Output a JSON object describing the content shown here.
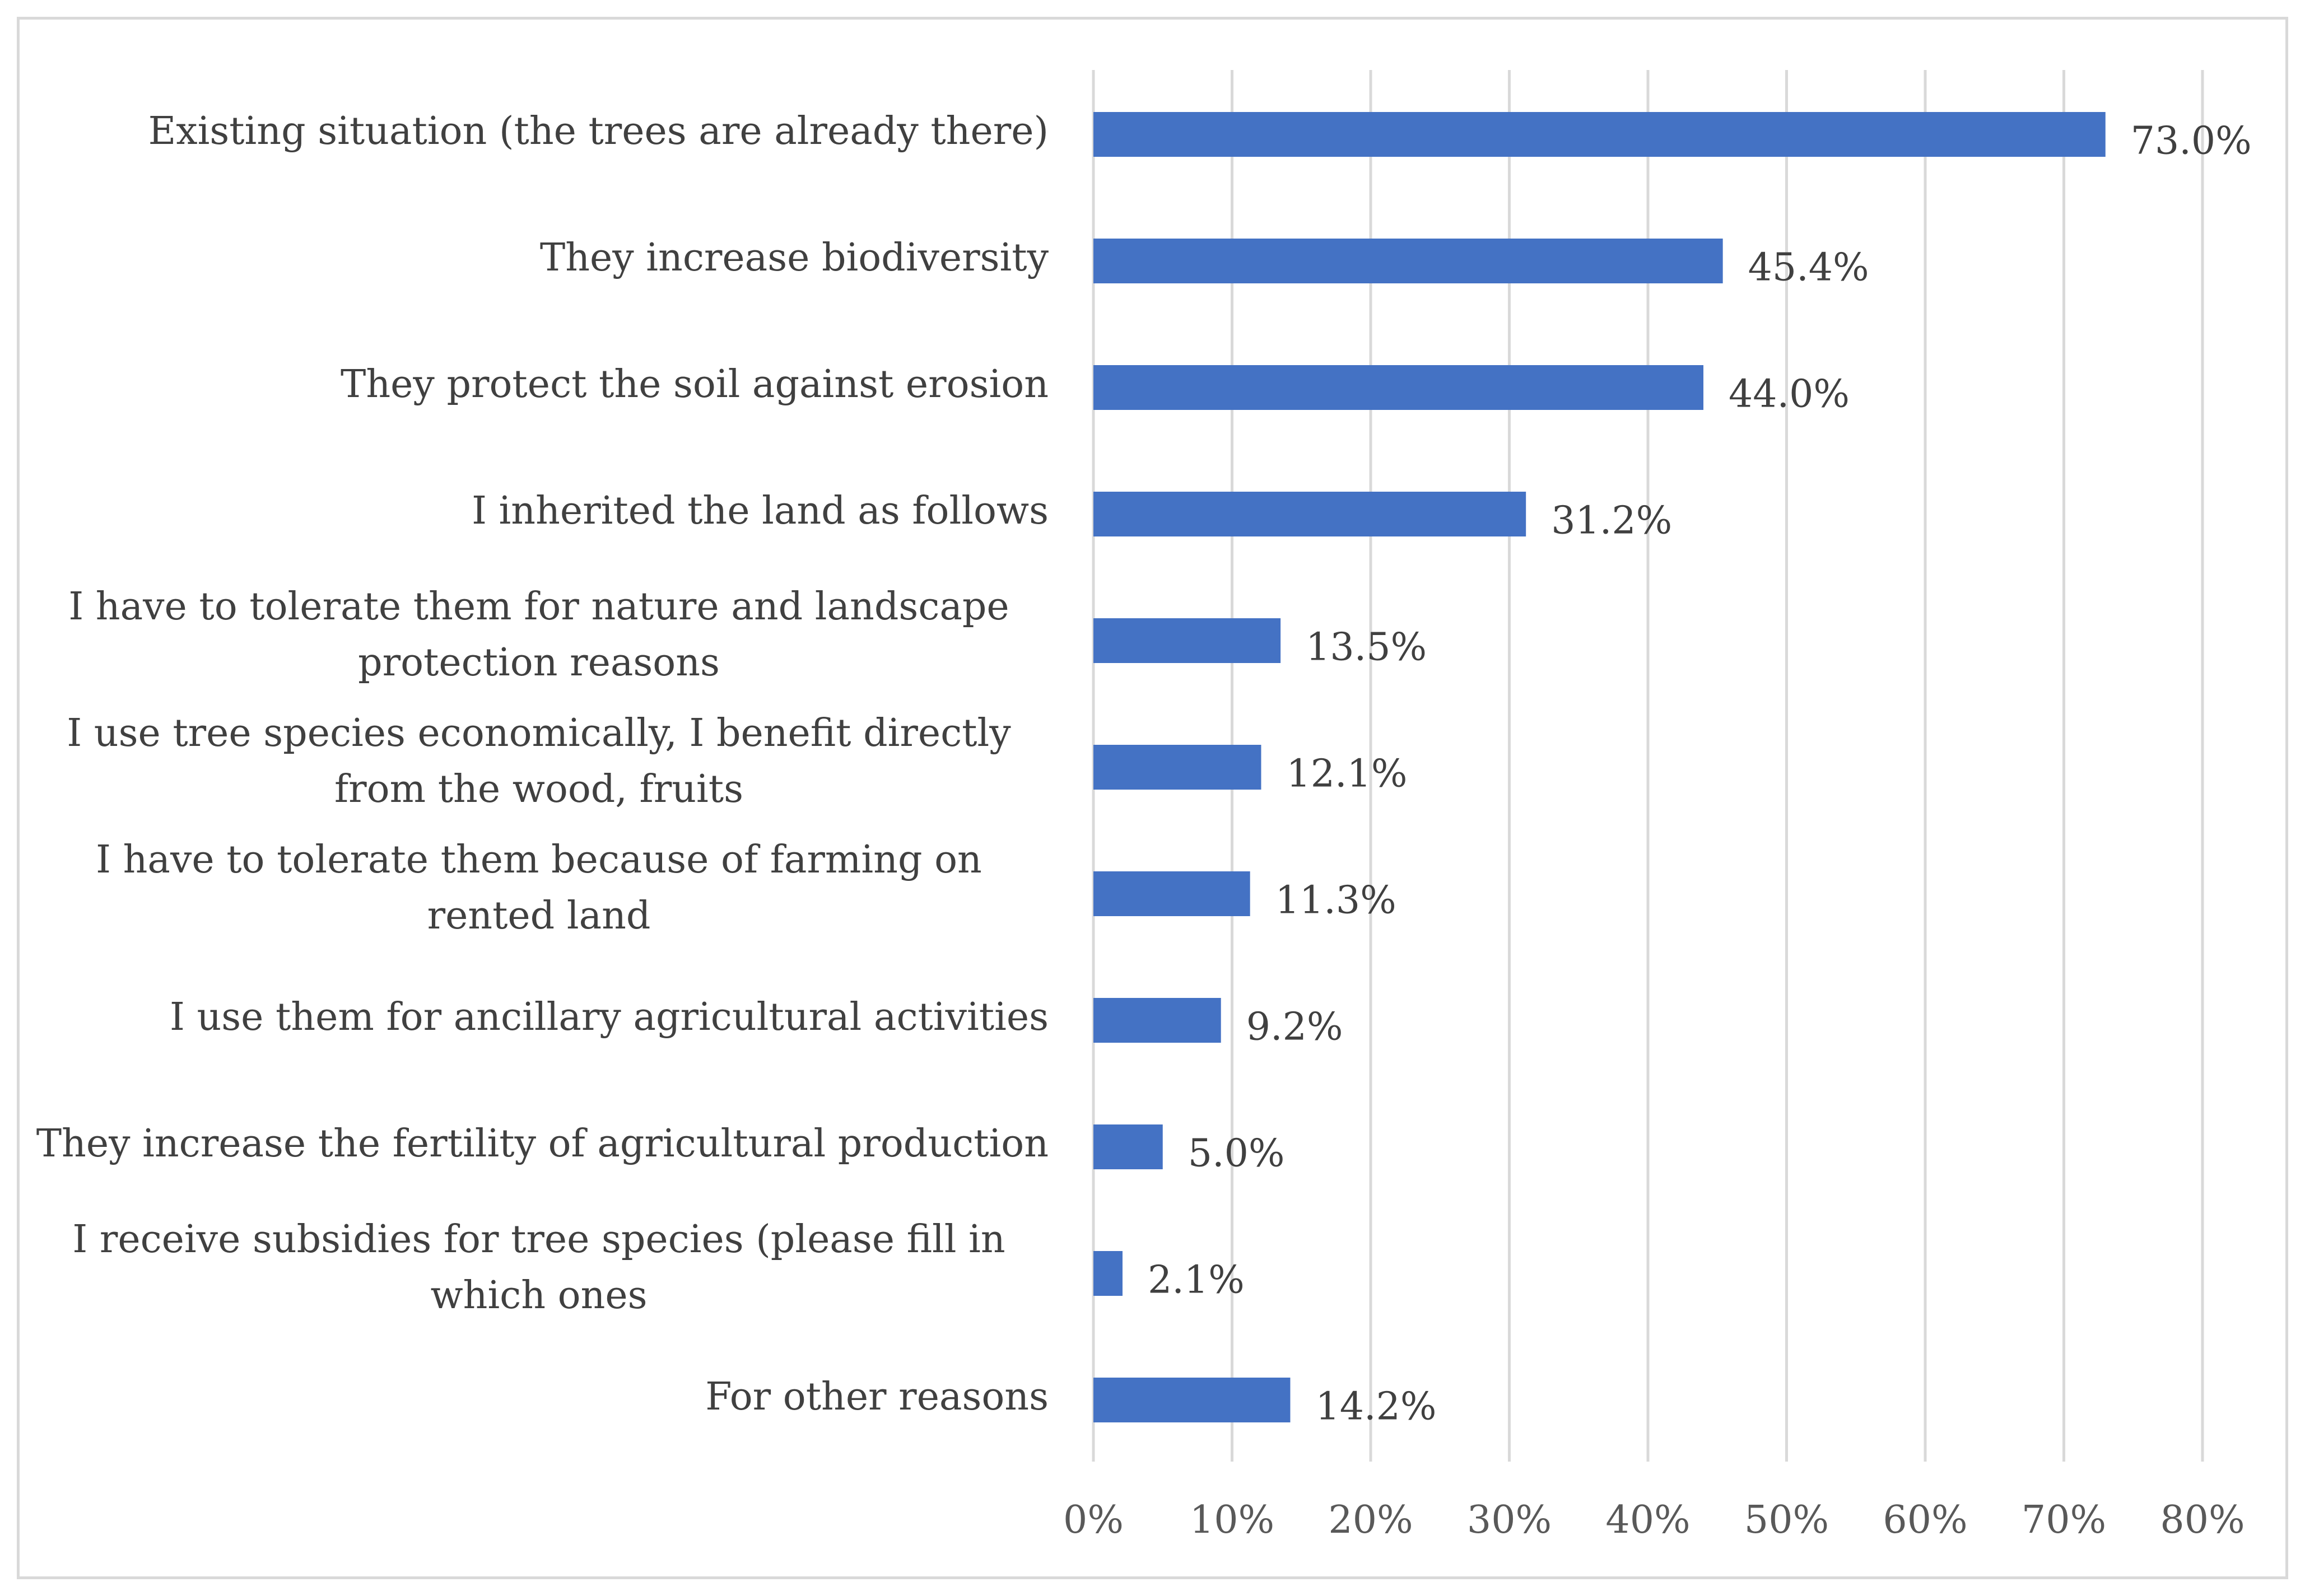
{
  "chart_data": {
    "type": "bar",
    "orientation": "horizontal",
    "categories": [
      "Existing situation (the trees are already there)",
      "They increase biodiversity",
      "They protect the soil against erosion",
      "I inherited the land as follows",
      "I have to tolerate them for nature and landscape protection reasons",
      "I use tree species economically, I benefit directly from the wood, fruits",
      "I have to tolerate them because of farming on rented land",
      "I use them for ancillary agricultural activities",
      "They increase the fertility of agricultural production",
      "I receive subsidies for tree species (please fill in which ones",
      "For other reasons"
    ],
    "values": [
      73.0,
      45.4,
      44.0,
      31.2,
      13.5,
      12.1,
      11.3,
      9.2,
      5.0,
      2.1,
      14.2
    ],
    "value_labels": [
      "73.0%",
      "45.4%",
      "44.0%",
      "31.2%",
      "13.5%",
      "12.1%",
      "11.3%",
      "9.2%",
      "5.0%",
      "2.1%",
      "14.2%"
    ],
    "xlim": [
      0,
      80
    ],
    "x_ticks": [
      "0%",
      "10%",
      "20%",
      "30%",
      "40%",
      "50%",
      "60%",
      "70%",
      "80%"
    ],
    "grid": true,
    "bar_color": "#4472c4",
    "grid_color": "#d9d9d9",
    "title": "",
    "xlabel": "",
    "ylabel": ""
  }
}
